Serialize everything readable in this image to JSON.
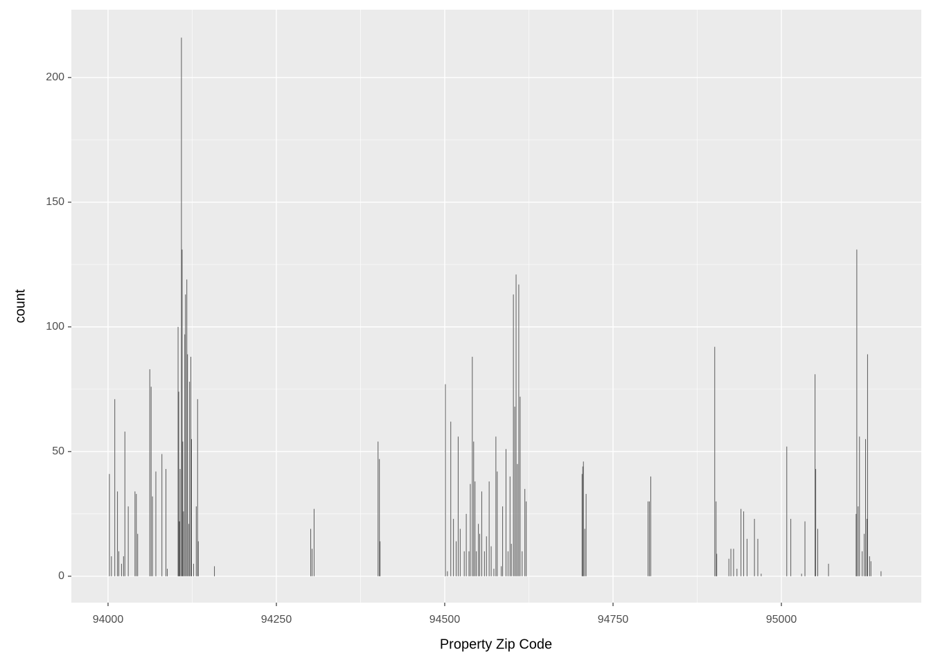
{
  "chart_data": {
    "type": "bar",
    "x_label": "Property Zip Code",
    "y_label": "count",
    "color": "#595959",
    "grid": true,
    "xlim": [
      93945.5,
      95207.8
    ],
    "ylim": [
      -10.6,
      227.2
    ],
    "xticks": [
      94000,
      94250,
      94500,
      94750,
      95000
    ],
    "yticks": [
      0,
      50,
      100,
      150,
      200
    ],
    "x": [
      94002,
      94005,
      94010,
      94014,
      94016,
      94020,
      94023,
      94025,
      94030,
      94040,
      94042,
      94044,
      94062,
      94064,
      94066,
      94071,
      94080,
      94086,
      94088,
      94104,
      94105,
      94106,
      94107,
      94109,
      94110,
      94111,
      94112,
      94114,
      94115,
      94117,
      94118,
      94120,
      94121,
      94123,
      94124,
      94127,
      94131,
      94133,
      94134,
      94158,
      94301,
      94303,
      94306,
      94401,
      94403,
      94404,
      94501,
      94504,
      94509,
      94513,
      94517,
      94520,
      94523,
      94529,
      94532,
      94536,
      94538,
      94541,
      94543,
      94545,
      94547,
      94550,
      94552,
      94555,
      94559,
      94562,
      94566,
      94569,
      94573,
      94576,
      94578,
      94584,
      94586,
      94591,
      94594,
      94597,
      94599,
      94602,
      94604,
      94606,
      94608,
      94610,
      94612,
      94615,
      94619,
      94621,
      94704,
      94705,
      94706,
      94708,
      94710,
      94802,
      94804,
      94806,
      94901,
      94903,
      94904,
      94922,
      94925,
      94929,
      94934,
      94940,
      94944,
      94949,
      94960,
      94965,
      94970,
      95008,
      95014,
      95030,
      95035,
      95050,
      95051,
      95054,
      95070,
      95111,
      95112,
      95114,
      95116,
      95120,
      95123,
      95125,
      95127,
      95128,
      95131,
      95133,
      95148
    ],
    "values": [
      41,
      8,
      71,
      34,
      10,
      5,
      8,
      58,
      28,
      34,
      33,
      17,
      83,
      76,
      32,
      42,
      49,
      43,
      3,
      100,
      74,
      22,
      43,
      216,
      131,
      54,
      26,
      97,
      113,
      119,
      89,
      21,
      78,
      88,
      55,
      5,
      28,
      71,
      14,
      4,
      19,
      11,
      27,
      54,
      47,
      14,
      77,
      2,
      62,
      23,
      14,
      56,
      19,
      10,
      25,
      10,
      37,
      88,
      54,
      38,
      10,
      21,
      17,
      34,
      10,
      16,
      38,
      12,
      3,
      56,
      42,
      4,
      28,
      51,
      10,
      40,
      13,
      113,
      68,
      121,
      45,
      117,
      72,
      10,
      35,
      30,
      41,
      44,
      46,
      19,
      33,
      30,
      30,
      40,
      92,
      30,
      9,
      7,
      11,
      11,
      3,
      27,
      26,
      15,
      23,
      15,
      1,
      52,
      23,
      1,
      22,
      81,
      43,
      19,
      5,
      25,
      131,
      28,
      56,
      10,
      17,
      55,
      23,
      89,
      8,
      6,
      2
    ]
  }
}
